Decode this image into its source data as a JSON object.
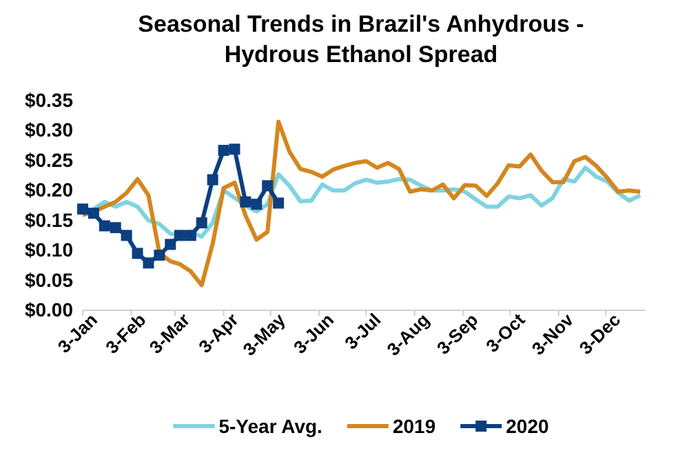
{
  "chart_data": {
    "type": "line",
    "title": "Seasonal Trends in Brazil's Anhydrous - Hydrous Ethanol Spread",
    "x": [
      "--01-03",
      "--01-10",
      "--01-17",
      "--01-24",
      "--01-31",
      "--02-07",
      "--02-14",
      "--02-21",
      "--02-28",
      "--03-06",
      "--03-13",
      "--03-20",
      "--03-27",
      "--04-03",
      "--04-10",
      "--04-17",
      "--04-24",
      "--05-01",
      "--05-08",
      "--05-15",
      "--05-22",
      "--05-29",
      "--06-05",
      "--06-12",
      "--06-19",
      "--06-26",
      "--07-03",
      "--07-10",
      "--07-17",
      "--07-24",
      "--07-31",
      "--08-07",
      "--08-14",
      "--08-21",
      "--08-28",
      "--09-04",
      "--09-11",
      "--09-18",
      "--09-25",
      "--10-02",
      "--10-09",
      "--10-16",
      "--10-23",
      "--10-30",
      "--11-06",
      "--11-13",
      "--11-20",
      "--11-27",
      "--12-04",
      "--12-11",
      "--12-18",
      "--12-25"
    ],
    "series": [
      {
        "name": "5-Year Avg.",
        "color": "#7fd3e0",
        "marker": "none",
        "values": [
          null,
          0.169,
          0.181,
          0.173,
          0.181,
          0.173,
          0.15,
          0.144,
          0.128,
          0.125,
          0.131,
          0.123,
          0.146,
          0.2,
          0.188,
          0.175,
          0.165,
          0.177,
          0.227,
          0.208,
          0.182,
          0.183,
          0.21,
          0.2,
          0.2,
          0.212,
          0.218,
          0.213,
          0.215,
          0.219,
          0.218,
          0.208,
          0.2,
          0.2,
          0.202,
          0.198,
          0.185,
          0.173,
          0.173,
          0.19,
          0.187,
          0.192,
          0.175,
          0.187,
          0.219,
          0.215,
          0.238,
          0.223,
          0.215,
          0.196,
          0.183,
          0.192
        ]
      },
      {
        "name": "2019",
        "color": "#d4861f",
        "marker": "none",
        "values": [
          0.159,
          0.165,
          0.173,
          0.181,
          0.196,
          0.219,
          0.192,
          0.096,
          0.082,
          0.077,
          0.065,
          0.042,
          0.111,
          0.204,
          0.213,
          0.158,
          0.118,
          0.131,
          0.315,
          0.265,
          0.236,
          0.231,
          0.223,
          0.235,
          0.241,
          0.246,
          0.249,
          0.238,
          0.246,
          0.236,
          0.198,
          0.202,
          0.2,
          0.21,
          0.187,
          0.209,
          0.208,
          0.191,
          0.212,
          0.242,
          0.24,
          0.26,
          0.233,
          0.214,
          0.214,
          0.249,
          0.256,
          0.241,
          0.221,
          0.198,
          0.2,
          0.198
        ]
      },
      {
        "name": "2020",
        "color": "#0c3f7f",
        "marker": "square",
        "x": [
          "--01-03",
          "--01-10",
          "--01-17",
          "--01-24",
          "--01-31",
          "--02-07",
          "--02-14",
          "--02-21",
          "--02-28",
          "--03-06",
          "--03-13",
          "--03-20",
          "--03-27",
          "--04-03",
          "--04-10",
          "--04-17",
          "--04-24",
          "--05-01",
          "--05-08"
        ],
        "values": [
          0.169,
          0.162,
          0.141,
          0.138,
          0.125,
          0.095,
          0.079,
          0.092,
          0.11,
          0.125,
          0.125,
          0.146,
          0.218,
          0.267,
          0.269,
          0.181,
          0.177,
          0.208,
          0.179
        ]
      }
    ],
    "xlim": [
      "--01-03",
      "--12-28"
    ],
    "xticks": [
      {
        "value": "--01-03",
        "label": "3-Jan"
      },
      {
        "value": "--02-03",
        "label": "3-Feb"
      },
      {
        "value": "--03-03",
        "label": "3-Mar"
      },
      {
        "value": "--04-03",
        "label": "3-Apr"
      },
      {
        "value": "--05-03",
        "label": "3-May"
      },
      {
        "value": "--06-03",
        "label": "3-Jun"
      },
      {
        "value": "--07-03",
        "label": "3-Jul"
      },
      {
        "value": "--08-03",
        "label": "3-Aug"
      },
      {
        "value": "--09-03",
        "label": "3-Sep"
      },
      {
        "value": "--10-03",
        "label": "3-Oct"
      },
      {
        "value": "--11-03",
        "label": "3-Nov"
      },
      {
        "value": "--12-03",
        "label": "3-Dec"
      }
    ],
    "ylim": [
      0,
      0.35
    ],
    "yticks": [
      {
        "value": 0,
        "label": "$0.00"
      },
      {
        "value": 0.05,
        "label": "$0.05"
      },
      {
        "value": 0.1,
        "label": "$0.10"
      },
      {
        "value": 0.15,
        "label": "$0.15"
      },
      {
        "value": 0.2,
        "label": "$0.20"
      },
      {
        "value": 0.25,
        "label": "$0.25"
      },
      {
        "value": 0.3,
        "label": "$0.30"
      },
      {
        "value": 0.35,
        "label": "$0.35"
      }
    ],
    "grid": false,
    "legend": "bottom",
    "line_style": "solid"
  }
}
